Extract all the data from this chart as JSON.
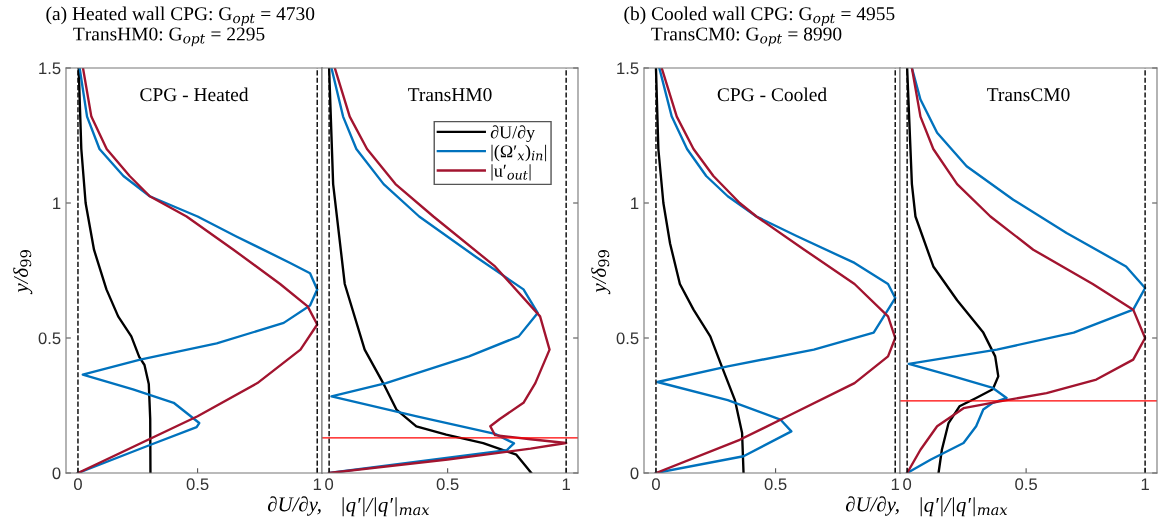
{
  "chart_data": [
    {
      "type": "line",
      "title": "CPG - Heated",
      "annotations": [
        "(a) Heated wall CPG: G$_{opt}$ = 4730",
        "TransHM0: G$_{opt}$ = 2295"
      ],
      "xlabel": "∂U/∂y,",
      "ylabel": "y/δ$_{99}$",
      "xlim": [
        -0.05,
        1.02
      ],
      "ylim": [
        0,
        1.5
      ],
      "xticks": [
        0,
        0.5,
        1
      ],
      "yticks": [
        0,
        0.5,
        1,
        1.5
      ],
      "grid": false,
      "legend": false,
      "marker": "none",
      "line_style": "solid",
      "ref_lines": [
        {
          "axis": "x",
          "value": 0,
          "color": "#000000",
          "line_style": "dashed"
        },
        {
          "axis": "x",
          "value": 1,
          "color": "#000000",
          "line_style": "dashed"
        }
      ],
      "series": [
        {
          "color": "#000000",
          "x": [
            0.303,
            0.302,
            0.296,
            0.278,
            0.256,
            0.223,
            0.168,
            0.119,
            0.067,
            0.032,
            0.014,
            0.003
          ],
          "values": [
            0,
            0.2,
            0.33,
            0.4,
            0.43,
            0.506,
            0.58,
            0.68,
            0.827,
            1.0,
            1.2,
            1.5
          ]
        },
        {
          "color": "#0072bd",
          "x": [
            0,
            0.29,
            0.496,
            0.507,
            0.4,
            0.23,
            0.02,
            0.26,
            0.58,
            0.86,
            0.97,
            1.0,
            0.97,
            0.887,
            0.66,
            0.5,
            0.3,
            0.19,
            0.09,
            0.038,
            0.007
          ],
          "values": [
            0,
            0.1,
            0.17,
            0.185,
            0.26,
            0.31,
            0.364,
            0.42,
            0.48,
            0.556,
            0.62,
            0.68,
            0.74,
            0.778,
            0.877,
            0.95,
            1.025,
            1.1,
            1.2,
            1.32,
            1.5
          ]
        },
        {
          "color": "#a2142f",
          "x": [
            0,
            0.5,
            0.75,
            0.93,
            1.0,
            0.96,
            0.845,
            0.65,
            0.454,
            0.3,
            0.216,
            0.12,
            0.056,
            0.021
          ],
          "values": [
            0,
            0.21,
            0.333,
            0.457,
            0.55,
            0.617,
            0.7,
            0.827,
            0.95,
            1.025,
            1.1,
            1.2,
            1.32,
            1.5
          ]
        }
      ]
    },
    {
      "type": "line",
      "title": "TransHM0",
      "xlabel": "|q′|/|q′|$_{max}$",
      "xlim": [
        -0.03,
        1.05
      ],
      "ylim": [
        0,
        1.5
      ],
      "xticks": [
        0,
        0.5,
        1
      ],
      "yticks": [
        0,
        0.5,
        1,
        1.5
      ],
      "tick_labels": "x",
      "grid": false,
      "legend": "top right",
      "marker": "none",
      "line_style": "solid",
      "ref_lines": [
        {
          "axis": "x",
          "value": 0,
          "color": "#000000",
          "line_style": "dashed"
        },
        {
          "axis": "x",
          "value": 1,
          "color": "#000000",
          "line_style": "dashed"
        },
        {
          "axis": "y",
          "value": 0.13,
          "color": "#ff0000",
          "line_style": "solid"
        }
      ],
      "series": [
        {
          "name": "∂U/∂y",
          "color": "#000000",
          "x": [
            0.853,
            0.83,
            0.79,
            0.65,
            0.494,
            0.368,
            0.284,
            0.228,
            0.15,
            0.066,
            0.017,
            0
          ],
          "values": [
            0,
            0.025,
            0.068,
            0.111,
            0.142,
            0.173,
            0.235,
            0.333,
            0.457,
            0.7,
            1.07,
            1.5
          ]
        },
        {
          "name": "|(Ω′$_{x}$)$_{in}$|",
          "color": "#0072bd",
          "x": [
            0,
            0.75,
            0.78,
            0.7,
            0.37,
            0.01,
            0.24,
            0.59,
            0.8,
            0.88,
            0.82,
            0.62,
            0.38,
            0.23,
            0.115,
            0.059,
            0.01
          ],
          "values": [
            0,
            0.085,
            0.11,
            0.145,
            0.21,
            0.284,
            0.333,
            0.432,
            0.506,
            0.593,
            0.68,
            0.8,
            0.95,
            1.07,
            1.2,
            1.32,
            1.5
          ]
        },
        {
          "name": "|u′$_{out}$|",
          "color": "#a2142f",
          "x": [
            0,
            0.5,
            0.85,
            1.0,
            0.85,
            0.7,
            0.68,
            0.72,
            0.82,
            0.87,
            0.93,
            0.89,
            0.7,
            0.44,
            0.28,
            0.16,
            0.087,
            0.024
          ],
          "values": [
            0,
            0.05,
            0.09,
            0.111,
            0.125,
            0.14,
            0.173,
            0.2,
            0.26,
            0.333,
            0.457,
            0.58,
            0.765,
            0.95,
            1.07,
            1.2,
            1.32,
            1.5
          ]
        }
      ]
    },
    {
      "type": "line",
      "title": "CPG - Cooled",
      "annotations": [
        "(b) Cooled wall CPG: G$_{opt}$ = 4955",
        "TransCM0: G$_{opt}$ = 8990"
      ],
      "xlabel": "∂U/∂y,",
      "ylabel": "y/δ$_{99}$",
      "xlim": [
        -0.05,
        1.02
      ],
      "ylim": [
        0,
        1.5
      ],
      "xticks": [
        0,
        0.5,
        1
      ],
      "yticks": [
        0,
        0.5,
        1,
        1.5
      ],
      "grid": false,
      "legend": false,
      "marker": "none",
      "line_style": "solid",
      "ref_lines": [
        {
          "axis": "x",
          "value": 0,
          "color": "#000000",
          "line_style": "dashed"
        },
        {
          "axis": "x",
          "value": 1,
          "color": "#000000",
          "line_style": "dashed"
        }
      ],
      "series": [
        {
          "color": "#000000",
          "x": [
            0.366,
            0.36,
            0.33,
            0.275,
            0.227,
            0.157,
            0.1,
            0.059,
            0.031,
            0.01,
            0
          ],
          "values": [
            0,
            0.148,
            0.27,
            0.395,
            0.506,
            0.605,
            0.7,
            0.85,
            1.0,
            1.2,
            1.5
          ]
        },
        {
          "color": "#0072bd",
          "x": [
            0,
            0.366,
            0.566,
            0.52,
            0.3,
            0.006,
            0.3,
            0.66,
            0.91,
            1.0,
            0.97,
            0.83,
            0.59,
            0.42,
            0.3,
            0.21,
            0.13,
            0.066,
            0.014
          ],
          "values": [
            0,
            0.062,
            0.154,
            0.198,
            0.27,
            0.337,
            0.395,
            0.457,
            0.52,
            0.648,
            0.7,
            0.778,
            0.877,
            0.95,
            1.025,
            1.1,
            1.2,
            1.32,
            1.5
          ]
        },
        {
          "color": "#a2142f",
          "x": [
            0,
            0.35,
            0.55,
            0.83,
            0.97,
            1.0,
            0.97,
            0.83,
            0.62,
            0.42,
            0.35,
            0.24,
            0.157,
            0.087,
            0.024
          ],
          "values": [
            0,
            0.123,
            0.21,
            0.333,
            0.432,
            0.5,
            0.58,
            0.7,
            0.827,
            0.95,
            1.0,
            1.1,
            1.2,
            1.32,
            1.5
          ]
        }
      ]
    },
    {
      "type": "line",
      "title": "TransCM0",
      "xlabel": "|q′|/|q′|$_{max}$",
      "xlim": [
        -0.03,
        1.05
      ],
      "ylim": [
        0,
        1.5
      ],
      "xticks": [
        0,
        0.5,
        1
      ],
      "yticks": [
        0,
        0.5,
        1,
        1.5
      ],
      "tick_labels": "x",
      "grid": false,
      "legend": false,
      "marker": "none",
      "line_style": "solid",
      "ref_lines": [
        {
          "axis": "x",
          "value": 0,
          "color": "#000000",
          "line_style": "dashed"
        },
        {
          "axis": "x",
          "value": 1,
          "color": "#000000",
          "line_style": "dashed"
        },
        {
          "axis": "y",
          "value": 0.267,
          "color": "#ff0000",
          "line_style": "solid"
        }
      ],
      "series": [
        {
          "color": "#000000",
          "x": [
            0.132,
            0.146,
            0.174,
            0.22,
            0.29,
            0.36,
            0.383,
            0.37,
            0.32,
            0.21,
            0.11,
            0.035,
            0.02,
            0
          ],
          "values": [
            0,
            0.086,
            0.185,
            0.247,
            0.278,
            0.31,
            0.358,
            0.432,
            0.52,
            0.64,
            0.765,
            0.95,
            1.07,
            1.5
          ]
        },
        {
          "color": "#0072bd",
          "x": [
            0,
            0.1,
            0.237,
            0.29,
            0.32,
            0.36,
            0.418,
            0.36,
            0.195,
            0.007,
            0.377,
            0.7,
            0.95,
            1.0,
            0.92,
            0.67,
            0.446,
            0.25,
            0.126,
            0.056,
            0.02
          ],
          "values": [
            0,
            0.05,
            0.111,
            0.173,
            0.235,
            0.26,
            0.278,
            0.315,
            0.358,
            0.404,
            0.457,
            0.52,
            0.605,
            0.685,
            0.765,
            0.889,
            1.012,
            1.136,
            1.26,
            1.383,
            1.5
          ]
        },
        {
          "color": "#a2142f",
          "x": [
            0,
            0.056,
            0.126,
            0.237,
            0.418,
            0.586,
            0.795,
            0.95,
            1.0,
            0.95,
            0.78,
            0.53,
            0.35,
            0.21,
            0.11,
            0.056,
            0.02
          ],
          "values": [
            0,
            0.086,
            0.173,
            0.24,
            0.27,
            0.296,
            0.346,
            0.42,
            0.5,
            0.605,
            0.7,
            0.827,
            0.95,
            1.07,
            1.2,
            1.32,
            1.5
          ]
        }
      ]
    }
  ]
}
